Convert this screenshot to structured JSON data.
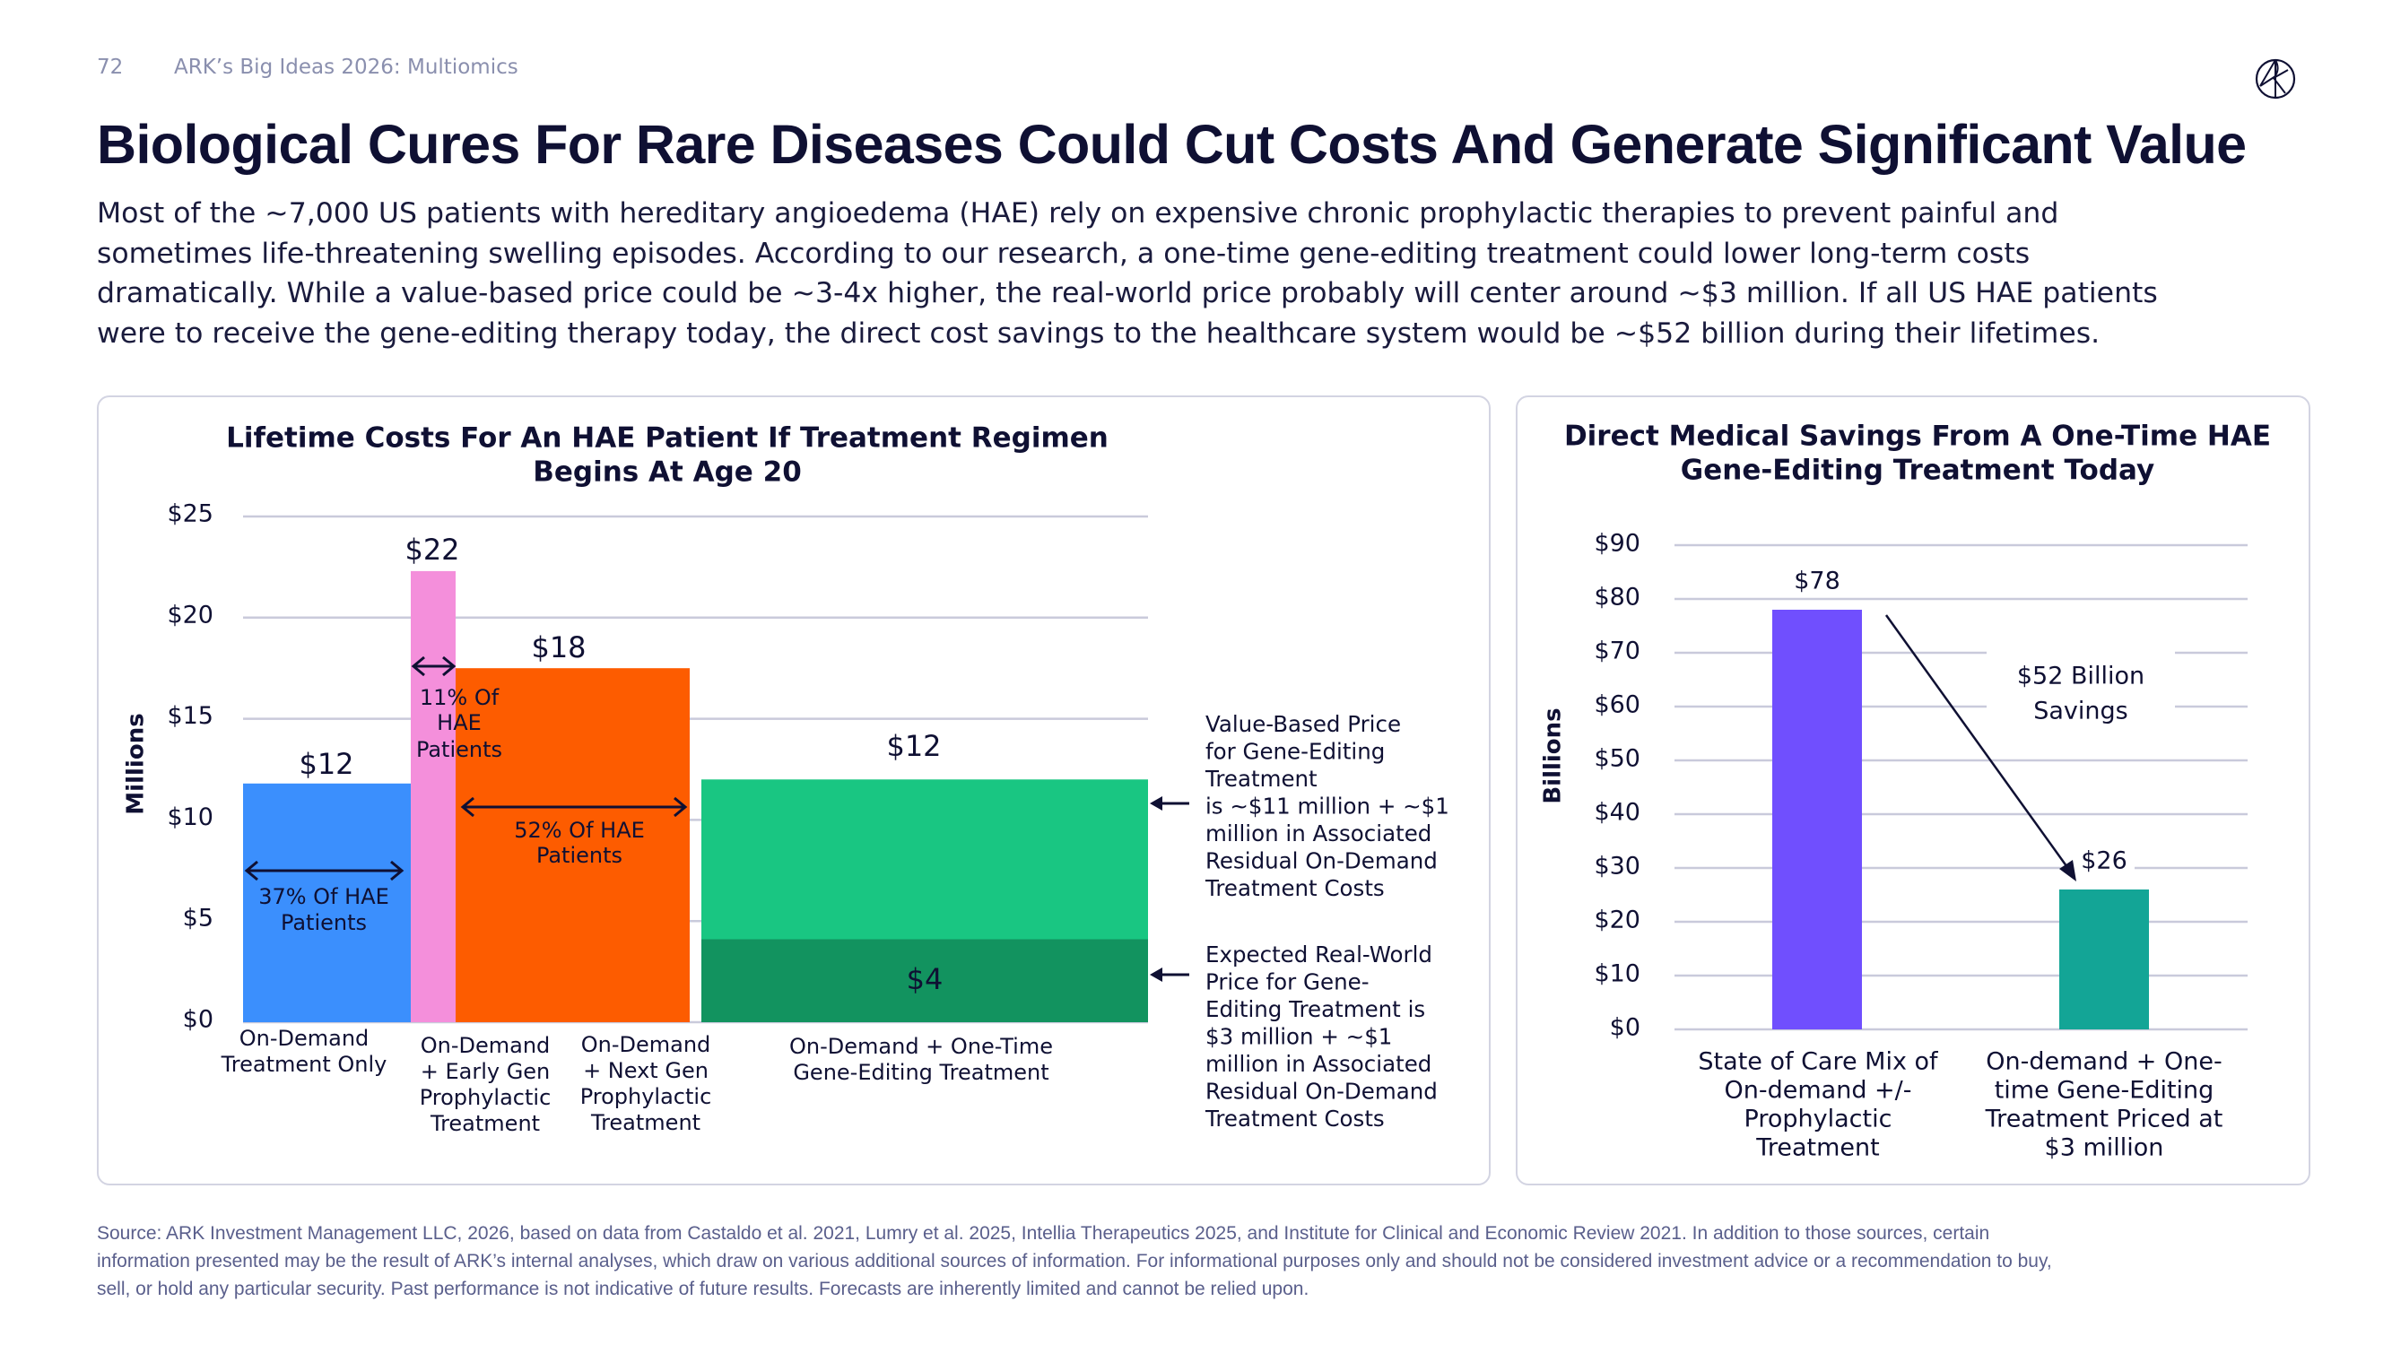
{
  "header": {
    "page_number": "72",
    "doc_title": "ARK’s Big Ideas 2026: Multiomics",
    "logo": "ark-logo-icon"
  },
  "title": "Biological Cures For Rare Diseases Could Cut Costs And Generate Significant Value",
  "paragraph": [
    "Most of the ~7,000 US patients with hereditary angioedema (HAE) rely on expensive chronic prophylactic therapies to prevent painful and",
    "sometimes life-threatening swelling episodes. According to our research, a one-time gene-editing treatment could lower long-term costs",
    "dramatically. While a value-based price could be ~3-4x higher, the real-world price probably will center around ~$3 million. If all US HAE patients",
    "were to receive the gene-editing therapy today, the direct cost savings to the healthcare system would be ~$52 billion during their lifetimes."
  ],
  "chart_data": [
    {
      "type": "bar",
      "title": [
        "Lifetime Costs For An HAE Patient If Treatment Regimen",
        "Begins At Age 20"
      ],
      "ylabel": "Millions",
      "ylim": [
        0,
        25
      ],
      "yticks": [
        "$0",
        "$5",
        "$10",
        "$15",
        "$20",
        "$25"
      ],
      "grid": true,
      "categories": [
        [
          "On-Demand",
          "Treatment Only"
        ],
        [
          "On-Demand",
          "+ Early Gen",
          "Prophylactic",
          "Treatment"
        ],
        [
          "On-Demand",
          "+ Next Gen",
          "Prophylactic",
          "Treatment"
        ],
        [
          "On-Demand + One-Time",
          "Gene-Editing Treatment"
        ]
      ],
      "values": [
        11.8,
        22.3,
        17.5,
        12.0
      ],
      "stacked_lower_value": 4.1,
      "value_labels": [
        "$12",
        "$22",
        "$18",
        "$12"
      ],
      "stacked_lower_label": "$4",
      "bar_widths_share_labels": [
        [
          "37% Of HAE",
          "Patients"
        ],
        [
          "11% Of",
          "HAE",
          "Patients"
        ],
        [
          "52% Of HAE",
          "Patients"
        ]
      ],
      "colors": [
        "#3b8ffd",
        "#f48fdb",
        "#fd5c00",
        "#19c682",
        "#12935f"
      ],
      "annotations": [
        [
          "Value-Based Price",
          "for Gene-Editing",
          "Treatment",
          "is ~$11 million + ~$1",
          "million in Associated",
          "Residual On-Demand",
          "Treatment Costs"
        ],
        [
          "Expected Real-World",
          "Price for Gene-",
          "Editing Treatment is",
          "$3 million + ~$1",
          "million in Associated",
          "Residual On-Demand",
          "Treatment Costs"
        ]
      ]
    },
    {
      "type": "bar",
      "title": [
        "Direct Medical Savings From A One-Time HAE",
        "Gene-Editing Treatment Today"
      ],
      "ylabel": "Billions",
      "ylim": [
        0,
        90
      ],
      "yticks": [
        "$0",
        "$10",
        "$20",
        "$30",
        "$40",
        "$50",
        "$60",
        "$70",
        "$80",
        "$90"
      ],
      "grid": true,
      "categories": [
        [
          "State of Care Mix of",
          "On-demand +/-",
          "Prophylactic",
          "Treatment"
        ],
        [
          "On-demand + One-",
          "time Gene-Editing",
          "Treatment Priced at",
          "$3 million"
        ]
      ],
      "values": [
        78,
        26
      ],
      "value_labels": [
        "$78",
        "$26"
      ],
      "colors": [
        "#704ffe",
        "#13a596"
      ],
      "annotation": [
        "$52 Billion",
        "Savings"
      ]
    }
  ],
  "footer": [
    "Source: ARK Investment Management LLC, 2026, based on data from Castaldo et al. 2021, Lumry et al. 2025, Intellia Therapeutics 2025, and Institute for Clinical and Economic Review 2021. In addition to those sources, certain",
    "information presented may be the result of ARK’s internal analyses, which draw on various additional sources of information. For informational purposes only and should not be considered investment advice or a recommendation to buy,",
    "sell, or hold any particular security. Past performance is not indicative of future results. Forecasts are inherently limited and cannot be relied upon."
  ]
}
